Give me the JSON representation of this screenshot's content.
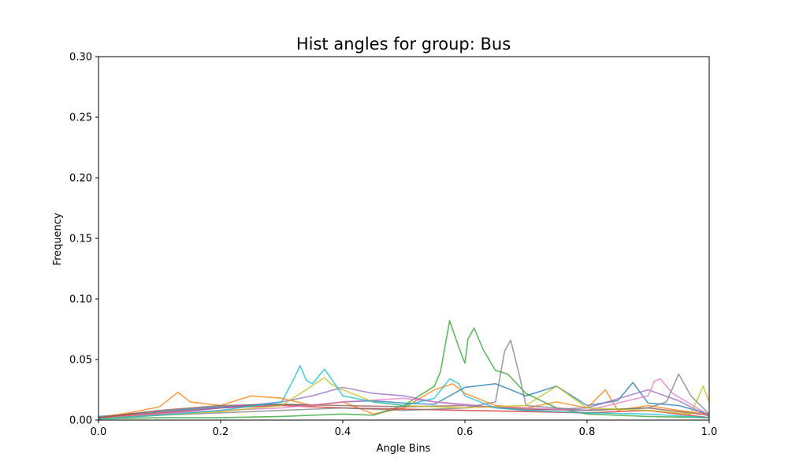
{
  "chart_data": {
    "type": "line",
    "title": "Hist angles for group: Bus",
    "xlabel": "Angle Bins",
    "ylabel": "Frequency",
    "xlim": [
      0.0,
      1.0
    ],
    "ylim": [
      0.0,
      0.3
    ],
    "x_ticks": [
      "0.0",
      "0.2",
      "0.4",
      "0.6",
      "0.8",
      "1.0"
    ],
    "y_ticks": [
      "0.00",
      "0.05",
      "0.10",
      "0.15",
      "0.20",
      "0.25",
      "0.30"
    ],
    "grid": false,
    "legend": "none",
    "series": [
      {
        "color": "#1f77b4",
        "x": [
          0.0,
          0.05,
          0.1,
          0.15,
          0.2,
          0.25,
          0.3,
          0.35,
          0.4,
          0.45,
          0.5,
          0.55,
          0.6,
          0.65,
          0.7,
          0.75,
          0.8,
          0.85,
          0.875,
          0.9,
          0.95,
          1.0
        ],
        "y": [
          0.003,
          0.005,
          0.007,
          0.009,
          0.011,
          0.012,
          0.013,
          0.012,
          0.015,
          0.016,
          0.014,
          0.013,
          0.027,
          0.03,
          0.02,
          0.028,
          0.012,
          0.016,
          0.031,
          0.014,
          0.012,
          0.005
        ]
      },
      {
        "color": "#ff7f0e",
        "x": [
          0.0,
          0.05,
          0.1,
          0.13,
          0.15,
          0.2,
          0.25,
          0.3,
          0.35,
          0.4,
          0.45,
          0.5,
          0.55,
          0.58,
          0.6,
          0.65,
          0.7,
          0.75,
          0.8,
          0.83,
          0.85,
          0.9,
          0.95,
          1.0
        ],
        "y": [
          0.002,
          0.006,
          0.011,
          0.023,
          0.015,
          0.012,
          0.02,
          0.018,
          0.012,
          0.015,
          0.005,
          0.01,
          0.025,
          0.03,
          0.022,
          0.012,
          0.01,
          0.015,
          0.01,
          0.025,
          0.008,
          0.012,
          0.008,
          0.005
        ]
      },
      {
        "color": "#2ca02c",
        "x": [
          0.0,
          0.1,
          0.2,
          0.3,
          0.4,
          0.45,
          0.5,
          0.55,
          0.56,
          0.575,
          0.59,
          0.6,
          0.605,
          0.615,
          0.63,
          0.65,
          0.67,
          0.7,
          0.75,
          0.8,
          0.9,
          1.0
        ],
        "y": [
          0.001,
          0.002,
          0.002,
          0.003,
          0.005,
          0.004,
          0.012,
          0.028,
          0.04,
          0.082,
          0.06,
          0.047,
          0.067,
          0.076,
          0.058,
          0.041,
          0.038,
          0.022,
          0.01,
          0.005,
          0.003,
          0.002
        ]
      },
      {
        "color": "#d62728",
        "x": [
          0.0,
          0.1,
          0.2,
          0.3,
          0.4,
          0.5,
          0.6,
          0.7,
          0.8,
          0.9,
          1.0
        ],
        "y": [
          0.002,
          0.006,
          0.01,
          0.012,
          0.01,
          0.009,
          0.008,
          0.007,
          0.006,
          0.008,
          0.002
        ]
      },
      {
        "color": "#9467bd",
        "x": [
          0.0,
          0.1,
          0.2,
          0.3,
          0.35,
          0.4,
          0.45,
          0.5,
          0.55,
          0.6,
          0.7,
          0.8,
          0.9,
          0.95,
          1.0
        ],
        "y": [
          0.001,
          0.005,
          0.01,
          0.015,
          0.02,
          0.027,
          0.022,
          0.02,
          0.015,
          0.013,
          0.008,
          0.01,
          0.025,
          0.016,
          0.003
        ]
      },
      {
        "color": "#8c564b",
        "x": [
          0.0,
          0.1,
          0.2,
          0.3,
          0.4,
          0.5,
          0.6,
          0.7,
          0.8,
          0.9,
          1.0
        ],
        "y": [
          0.002,
          0.008,
          0.012,
          0.013,
          0.012,
          0.011,
          0.012,
          0.009,
          0.008,
          0.01,
          0.004
        ]
      },
      {
        "color": "#e377c2",
        "x": [
          0.0,
          0.1,
          0.2,
          0.3,
          0.4,
          0.5,
          0.6,
          0.7,
          0.8,
          0.9,
          0.91,
          0.92,
          0.94,
          1.0
        ],
        "y": [
          0.001,
          0.005,
          0.008,
          0.01,
          0.015,
          0.018,
          0.012,
          0.01,
          0.008,
          0.02,
          0.032,
          0.034,
          0.022,
          0.004
        ]
      },
      {
        "color": "#7f7f7f",
        "x": [
          0.0,
          0.1,
          0.2,
          0.3,
          0.4,
          0.5,
          0.6,
          0.65,
          0.665,
          0.675,
          0.69,
          0.7,
          0.8,
          0.9,
          0.93,
          0.95,
          0.97,
          1.0
        ],
        "y": [
          0.001,
          0.004,
          0.006,
          0.008,
          0.01,
          0.008,
          0.01,
          0.015,
          0.057,
          0.066,
          0.035,
          0.012,
          0.008,
          0.01,
          0.015,
          0.038,
          0.02,
          0.005
        ]
      },
      {
        "color": "#bcbd22",
        "x": [
          0.0,
          0.1,
          0.2,
          0.3,
          0.37,
          0.38,
          0.4,
          0.45,
          0.5,
          0.6,
          0.7,
          0.75,
          0.8,
          0.9,
          0.97,
          0.99,
          1.0
        ],
        "y": [
          0.001,
          0.004,
          0.007,
          0.012,
          0.035,
          0.03,
          0.025,
          0.015,
          0.012,
          0.01,
          0.012,
          0.028,
          0.01,
          0.008,
          0.005,
          0.028,
          0.015
        ]
      },
      {
        "color": "#17becf",
        "x": [
          0.0,
          0.1,
          0.2,
          0.3,
          0.32,
          0.33,
          0.34,
          0.35,
          0.37,
          0.38,
          0.4,
          0.45,
          0.5,
          0.55,
          0.575,
          0.59,
          0.6,
          0.65,
          0.7,
          0.8,
          0.9,
          1.0
        ],
        "y": [
          0.001,
          0.004,
          0.008,
          0.015,
          0.034,
          0.045,
          0.033,
          0.03,
          0.042,
          0.035,
          0.02,
          0.015,
          0.012,
          0.018,
          0.034,
          0.03,
          0.02,
          0.01,
          0.008,
          0.006,
          0.005,
          0.002
        ]
      }
    ]
  }
}
